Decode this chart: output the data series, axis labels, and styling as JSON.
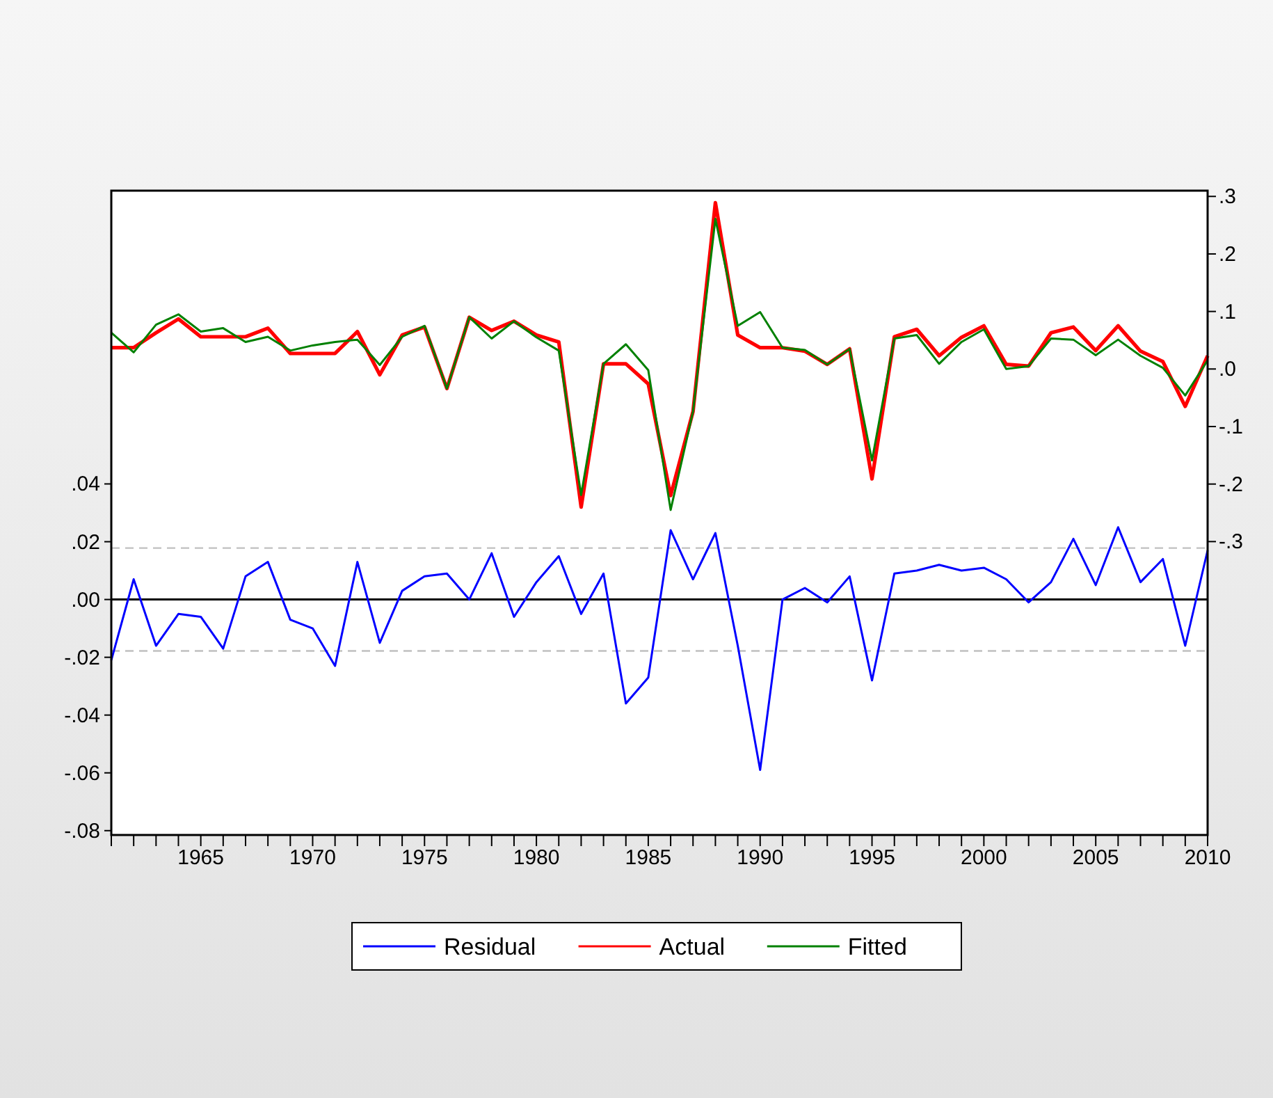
{
  "chart_data": {
    "type": "line",
    "x": [
      1961,
      1962,
      1963,
      1964,
      1965,
      1966,
      1967,
      1968,
      1969,
      1970,
      1971,
      1972,
      1973,
      1974,
      1975,
      1976,
      1977,
      1978,
      1979,
      1980,
      1981,
      1982,
      1983,
      1984,
      1985,
      1986,
      1987,
      1988,
      1989,
      1990,
      1991,
      1992,
      1993,
      1994,
      1995,
      1996,
      1997,
      1998,
      1999,
      2000,
      2001,
      2002,
      2003,
      2004,
      2005,
      2006,
      2007,
      2008,
      2009,
      2010
    ],
    "series": [
      {
        "name": "Residual",
        "color": "#0000ff",
        "values": [
          -0.021,
          0.007,
          -0.016,
          -0.005,
          -0.006,
          -0.017,
          0.008,
          0.013,
          -0.007,
          -0.01,
          -0.023,
          0.013,
          -0.015,
          0.003,
          0.008,
          0.009,
          0.0,
          0.016,
          -0.006,
          0.006,
          0.015,
          -0.005,
          0.009,
          -0.036,
          -0.027,
          0.024,
          0.007,
          0.023,
          -0.016,
          -0.059,
          0.0,
          0.004,
          -0.001,
          0.008,
          -0.028,
          0.009,
          0.01,
          0.012,
          0.01,
          0.011,
          0.007,
          -0.001,
          0.006,
          0.021,
          0.005,
          0.025,
          0.006,
          0.014,
          -0.016,
          0.017
        ]
      },
      {
        "name": "Actual",
        "color": "#ff0000",
        "axis": "y2",
        "values": [
          0.037,
          0.037,
          0.063,
          0.087,
          0.056,
          0.056,
          0.056,
          0.071,
          0.027,
          0.027,
          0.027,
          0.065,
          -0.01,
          0.059,
          0.073,
          -0.034,
          0.09,
          0.067,
          0.083,
          0.059,
          0.047,
          -0.24,
          0.009,
          0.009,
          -0.026,
          -0.22,
          -0.074,
          0.289,
          0.059,
          0.037,
          0.037,
          0.031,
          0.008,
          0.035,
          -0.191,
          0.056,
          0.069,
          0.023,
          0.055,
          0.075,
          0.008,
          0.005,
          0.063,
          0.073,
          0.032,
          0.075,
          0.031,
          0.013,
          -0.065,
          0.023
        ]
      },
      {
        "name": "Fitted",
        "color": "#008000",
        "axis": "y2",
        "values": [
          0.063,
          0.029,
          0.077,
          0.095,
          0.065,
          0.071,
          0.047,
          0.056,
          0.032,
          0.041,
          0.047,
          0.051,
          0.007,
          0.056,
          0.075,
          -0.034,
          0.09,
          0.053,
          0.083,
          0.055,
          0.032,
          -0.219,
          0.009,
          0.043,
          -0.002,
          -0.245,
          -0.074,
          0.261,
          0.075,
          0.099,
          0.037,
          0.033,
          0.008,
          0.035,
          -0.159,
          0.053,
          0.059,
          0.009,
          0.047,
          0.069,
          0.0,
          0.005,
          0.053,
          0.051,
          0.024,
          0.051,
          0.023,
          0.002,
          -0.046,
          0.015
        ]
      }
    ],
    "xlim": [
      1961,
      2010
    ],
    "xticks": [
      {
        "value": 1961,
        "label": null
      },
      {
        "value": 1962,
        "label": null
      },
      {
        "value": 1963,
        "label": null
      },
      {
        "value": 1964,
        "label": null
      },
      1965,
      {
        "value": 1966,
        "label": null
      },
      {
        "value": 1967,
        "label": null
      },
      {
        "value": 1968,
        "label": null
      },
      {
        "value": 1969,
        "label": null
      },
      1970,
      {
        "value": 1971,
        "label": null
      },
      {
        "value": 1972,
        "label": null
      },
      {
        "value": 1973,
        "label": null
      },
      {
        "value": 1974,
        "label": null
      },
      1975,
      {
        "value": 1976,
        "label": null
      },
      {
        "value": 1977,
        "label": null
      },
      {
        "value": 1978,
        "label": null
      },
      {
        "value": 1979,
        "label": null
      },
      1980,
      {
        "value": 1981,
        "label": null
      },
      {
        "value": 1982,
        "label": null
      },
      {
        "value": 1983,
        "label": null
      },
      {
        "value": 1984,
        "label": null
      },
      1985,
      {
        "value": 1986,
        "label": null
      },
      {
        "value": 1987,
        "label": null
      },
      {
        "value": 1988,
        "label": null
      },
      {
        "value": 1989,
        "label": null
      },
      1990,
      {
        "value": 1991,
        "label": null
      },
      {
        "value": 1992,
        "label": null
      },
      {
        "value": 1993,
        "label": null
      },
      {
        "value": 1994,
        "label": null
      },
      1995,
      {
        "value": 1996,
        "label": null
      },
      {
        "value": 1997,
        "label": null
      },
      {
        "value": 1998,
        "label": null
      },
      {
        "value": 1999,
        "label": null
      },
      2000,
      {
        "value": 2001,
        "label": null
      },
      {
        "value": 2002,
        "label": null
      },
      {
        "value": 2003,
        "label": null
      },
      {
        "value": 2004,
        "label": null
      },
      2005,
      {
        "value": 2006,
        "label": null
      },
      {
        "value": 2007,
        "label": null
      },
      {
        "value": 2008,
        "label": null
      },
      {
        "value": 2009,
        "label": null
      },
      2010
    ],
    "ylim": [
      -0.0815,
      0.1415
    ],
    "yticks": [
      {
        "value": 0.04,
        "label": ".04"
      },
      {
        "value": 0.02,
        "label": ".02"
      },
      {
        "value": 0,
        "label": ".00"
      },
      {
        "value": -0.02,
        "label": "-.02"
      },
      {
        "value": -0.04,
        "label": "-.04"
      },
      {
        "value": -0.06,
        "label": "-.06"
      },
      {
        "value": -0.08,
        "label": "-.08"
      }
    ],
    "y2lim": [
      -0.81,
      0.31
    ],
    "y2ticks": [
      {
        "value": 0.3,
        "label": ".3"
      },
      {
        "value": 0.2,
        "label": ".2"
      },
      {
        "value": 0.1,
        "label": ".1"
      },
      {
        "value": 0,
        "label": ".0"
      },
      {
        "value": -0.1,
        "label": "-.1"
      },
      {
        "value": -0.2,
        "label": "-.2"
      },
      {
        "value": -0.3,
        "label": "-.3"
      }
    ],
    "ref_lines": [
      {
        "axis": "y",
        "value": 0,
        "color": "#000000",
        "line_style": "solid"
      },
      {
        "axis": "y",
        "value": 0.0178,
        "color": "#c0c0c0",
        "line_style": "dashed"
      },
      {
        "axis": "y",
        "value": -0.0178,
        "color": "#c0c0c0",
        "line_style": "dashed"
      }
    ],
    "legend": "bottom",
    "grid": false,
    "marker": "none",
    "line_style": "solid"
  }
}
